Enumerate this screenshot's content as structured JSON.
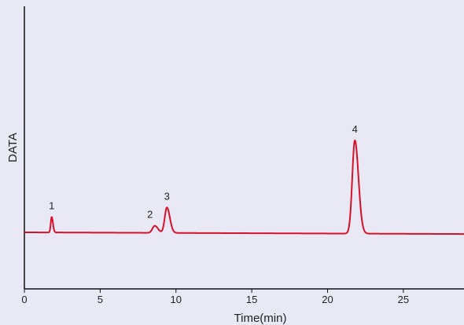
{
  "chart_data": {
    "type": "line",
    "xlabel": "Time(min)",
    "ylabel": "DATA",
    "xlim": [
      0,
      29
    ],
    "ylim": [
      0,
      100
    ],
    "xticks": [
      0,
      5,
      10,
      15,
      20,
      25
    ],
    "grid": false,
    "baseline": 20,
    "series": [
      {
        "color": "#d8102a",
        "peaks": [
          {
            "label": "1",
            "time": 1.8,
            "height": 5.5,
            "width": 0.06
          },
          {
            "label": "2",
            "time": 8.6,
            "height": 2.5,
            "width": 0.15
          },
          {
            "label": "3",
            "time": 9.4,
            "height": 9.0,
            "width": 0.14
          },
          {
            "label": "4",
            "time": 21.8,
            "height": 33.0,
            "width": 0.17
          }
        ]
      }
    ]
  }
}
